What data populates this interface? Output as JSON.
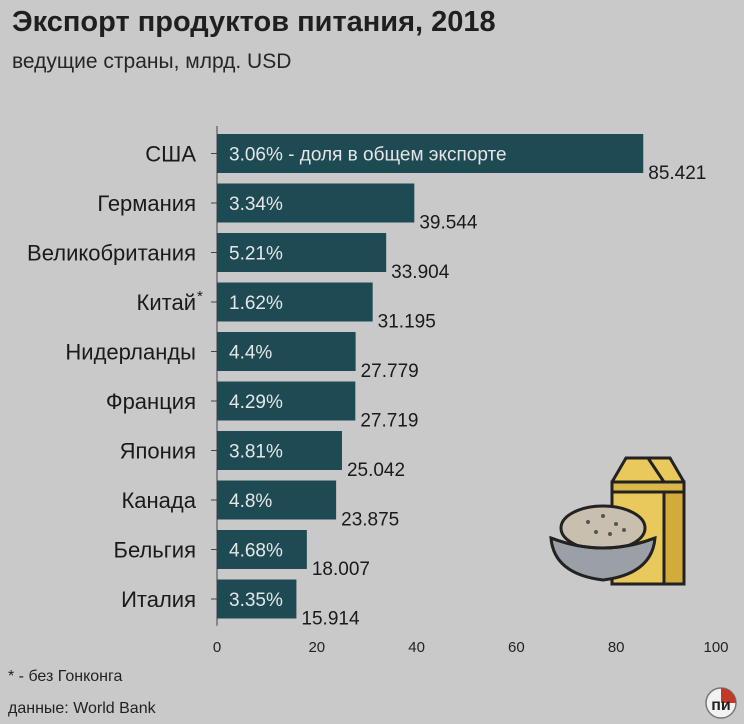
{
  "title": "Экспорт продуктов питания, 2018",
  "subtitle": "ведущие страны, млрд. USD",
  "footnote": "* - без Гонконга",
  "source": "данные: World Bank",
  "logo_text": "пи",
  "colors": {
    "background": "#c9c9c9",
    "bar": "#1e4a54",
    "bar_text": "#e6e6e6",
    "label_text": "#1a1a1a"
  },
  "icons": [
    "food-bowl-icon",
    "milk-carton-icon"
  ],
  "chart_data": {
    "type": "bar",
    "orientation": "horizontal",
    "categories": [
      "США",
      "Германия",
      "Великобритания",
      "Китай*",
      "Нидерланды",
      "Франция",
      "Япония",
      "Канада",
      "Бельгия",
      "Италия"
    ],
    "values": [
      85.421,
      39.544,
      33.904,
      31.195,
      27.779,
      27.719,
      25.042,
      23.875,
      18.007,
      15.914
    ],
    "value_labels": [
      "85.421",
      "39.544",
      "33.904",
      "31.195",
      "27.779",
      "27.719",
      "25.042",
      "23.875",
      "18.007",
      "15.914"
    ],
    "share_labels": [
      "3.06% - доля в общем экспорте",
      "3.34%",
      "5.21%",
      "1.62%",
      "4.4%",
      "4.29%",
      "3.81%",
      "4.8%",
      "4.68%",
      "3.35%"
    ],
    "xlim": [
      0,
      100
    ],
    "xticks": [
      0,
      20,
      40,
      60,
      80,
      100
    ],
    "grid": false
  }
}
